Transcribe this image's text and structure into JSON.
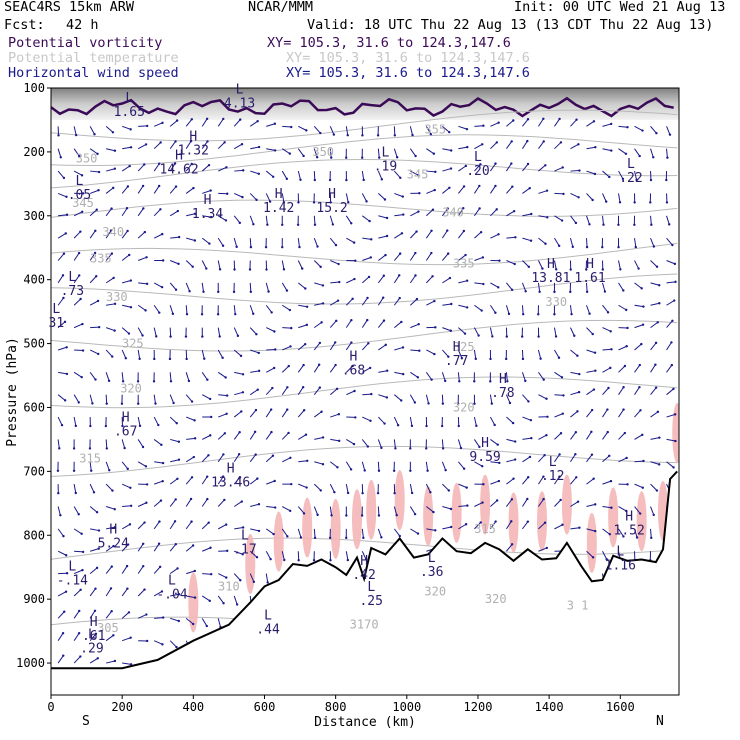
{
  "header": {
    "model": "SEAC4RS 15km ARW",
    "org": "NCAR/MMM",
    "init": "Init: 00 UTC Wed 21 Aug 13",
    "fcst_label": "Fcst:",
    "fcst_value": "42 h",
    "valid": "Valid: 18 UTC Thu 22 Aug 13 (13 CDT Thu 22 Aug 13)",
    "fields": [
      {
        "name": "Potential vorticity",
        "xy": "XY= 105.3, 31.6 to 124.3,147.6",
        "color": "#3b0a57"
      },
      {
        "name": "Potential temperature",
        "xy": "XY= 105.3, 31.6 to 124.3,147.6",
        "color": "#c8c8c8"
      },
      {
        "name": "Horizontal wind speed",
        "xy": "XY= 105.3, 31.6 to 124.3,147.6",
        "color": "#1a1a8c"
      }
    ]
  },
  "chart_data": {
    "type": "cross-section",
    "xlabel": "Distance (km)",
    "ylabel": "Pressure (hPa)",
    "xlim": [
      0,
      1765
    ],
    "ylim": [
      1050,
      100
    ],
    "xticks": [
      0,
      200,
      400,
      600,
      800,
      1000,
      1200,
      1400,
      1600
    ],
    "yticks": [
      100,
      200,
      300,
      400,
      500,
      600,
      700,
      800,
      900,
      1000
    ],
    "end_labels": {
      "left": "S",
      "right": "N"
    },
    "terrain": [
      [
        0,
        1008
      ],
      [
        100,
        1008
      ],
      [
        200,
        1008
      ],
      [
        300,
        995
      ],
      [
        400,
        965
      ],
      [
        500,
        940
      ],
      [
        560,
        905
      ],
      [
        600,
        880
      ],
      [
        640,
        870
      ],
      [
        680,
        845
      ],
      [
        720,
        848
      ],
      [
        760,
        838
      ],
      [
        800,
        850
      ],
      [
        830,
        862
      ],
      [
        860,
        835
      ],
      [
        880,
        868
      ],
      [
        900,
        820
      ],
      [
        940,
        830
      ],
      [
        980,
        805
      ],
      [
        1020,
        835
      ],
      [
        1060,
        830
      ],
      [
        1100,
        805
      ],
      [
        1140,
        825
      ],
      [
        1180,
        828
      ],
      [
        1220,
        812
      ],
      [
        1260,
        822
      ],
      [
        1300,
        840
      ],
      [
        1340,
        822
      ],
      [
        1380,
        838
      ],
      [
        1420,
        836
      ],
      [
        1450,
        812
      ],
      [
        1490,
        848
      ],
      [
        1520,
        872
      ],
      [
        1550,
        870
      ],
      [
        1580,
        832
      ],
      [
        1620,
        840
      ],
      [
        1660,
        838
      ],
      [
        1700,
        842
      ],
      [
        1720,
        822
      ],
      [
        1740,
        712
      ],
      [
        1760,
        700
      ]
    ],
    "theta_contours": [
      {
        "label": "355",
        "x": 1080,
        "p": 165
      },
      {
        "label": "350",
        "x": 765,
        "p": 200
      },
      {
        "label": "350",
        "x": 100,
        "p": 210
      },
      {
        "label": "345",
        "x": 1030,
        "p": 235
      },
      {
        "label": "345",
        "x": 90,
        "p": 280
      },
      {
        "label": "340",
        "x": 1130,
        "p": 295
      },
      {
        "label": "340",
        "x": 175,
        "p": 325
      },
      {
        "label": "335",
        "x": 1160,
        "p": 375
      },
      {
        "label": "335",
        "x": 140,
        "p": 367
      },
      {
        "label": "330",
        "x": 1420,
        "p": 435
      },
      {
        "label": "330",
        "x": 185,
        "p": 427
      },
      {
        "label": "325",
        "x": 1160,
        "p": 505
      },
      {
        "label": "325",
        "x": 230,
        "p": 500
      },
      {
        "label": "320",
        "x": 1160,
        "p": 600
      },
      {
        "label": "320",
        "x": 225,
        "p": 570
      },
      {
        "label": "315",
        "x": 110,
        "p": 680
      },
      {
        "label": "315",
        "x": 1220,
        "p": 790
      },
      {
        "label": "310",
        "x": 500,
        "p": 880
      },
      {
        "label": "305",
        "x": 160,
        "p": 945
      }
    ],
    "pv_fill_regions": [
      {
        "label": "high-pv-shading",
        "x": [
          0,
          1765
        ],
        "p": [
          100,
          150
        ]
      }
    ],
    "extrema": [
      {
        "type": "L",
        "value": "1.65",
        "x": 220,
        "p": 125
      },
      {
        "type": "L",
        "value": "4.13",
        "x": 530,
        "p": 112
      },
      {
        "type": "H",
        "value": "1.32",
        "x": 400,
        "p": 185
      },
      {
        "type": "H",
        "value": "14.62",
        "x": 360,
        "p": 215
      },
      {
        "type": "L",
        "value": ".05",
        "x": 80,
        "p": 255
      },
      {
        "type": "H",
        "value": "1.34",
        "x": 440,
        "p": 285
      },
      {
        "type": "H",
        "value": "1.42",
        "x": 640,
        "p": 275
      },
      {
        "type": "H",
        "value": "15.2",
        "x": 790,
        "p": 275
      },
      {
        "type": "L",
        "value": ".19",
        "x": 940,
        "p": 210
      },
      {
        "type": "L",
        "value": ".20",
        "x": 1200,
        "p": 217
      },
      {
        "type": "L",
        "value": ".22",
        "x": 1630,
        "p": 228
      },
      {
        "type": "L",
        "value": ".73",
        "x": 60,
        "p": 405
      },
      {
        "type": "L",
        "value": "31",
        "x": 15,
        "p": 455
      },
      {
        "type": "H",
        "value": "13.81",
        "x": 1405,
        "p": 385
      },
      {
        "type": "H",
        "value": "1.61",
        "x": 1515,
        "p": 385
      },
      {
        "type": "H",
        "value": ".68",
        "x": 850,
        "p": 530
      },
      {
        "type": "H",
        "value": ".77",
        "x": 1140,
        "p": 515
      },
      {
        "type": "H",
        "value": ".78",
        "x": 1270,
        "p": 565
      },
      {
        "type": "H",
        "value": ".67",
        "x": 210,
        "p": 625
      },
      {
        "type": "H",
        "value": "9.59",
        "x": 1220,
        "p": 665
      },
      {
        "type": "L",
        "value": ".12",
        "x": 1410,
        "p": 695
      },
      {
        "type": "H",
        "value": "13.46",
        "x": 505,
        "p": 705
      },
      {
        "type": "H",
        "value": "1.52",
        "x": 1625,
        "p": 780
      },
      {
        "type": "H",
        "value": "5.24",
        "x": 175,
        "p": 800
      },
      {
        "type": "L",
        "value": ".17",
        "x": 545,
        "p": 810
      },
      {
        "type": "L",
        "value": "1.16",
        "x": 1600,
        "p": 835
      },
      {
        "type": "L",
        "value": "-.14",
        "x": 60,
        "p": 858
      },
      {
        "type": "H",
        "value": ".42",
        "x": 880,
        "p": 850
      },
      {
        "type": "L",
        "value": ".36",
        "x": 1070,
        "p": 845
      },
      {
        "type": "L",
        "value": ".25",
        "x": 900,
        "p": 890
      },
      {
        "type": "L",
        "value": "-.04",
        "x": 340,
        "p": 880
      },
      {
        "type": "L",
        "value": ".44",
        "x": 610,
        "p": 935
      },
      {
        "type": "H",
        "value": ".61",
        "x": 120,
        "p": 945
      },
      {
        "type": "L",
        "value": ".29",
        "x": 115,
        "p": 965
      }
    ],
    "extra_labels": [
      {
        "text": "3170",
        "x": 880,
        "p": 940
      },
      {
        "text": "3 1",
        "x": 1480,
        "p": 910
      },
      {
        "text": "320",
        "x": 1250,
        "p": 900
      },
      {
        "text": "320",
        "x": 1080,
        "p": 888
      }
    ]
  }
}
